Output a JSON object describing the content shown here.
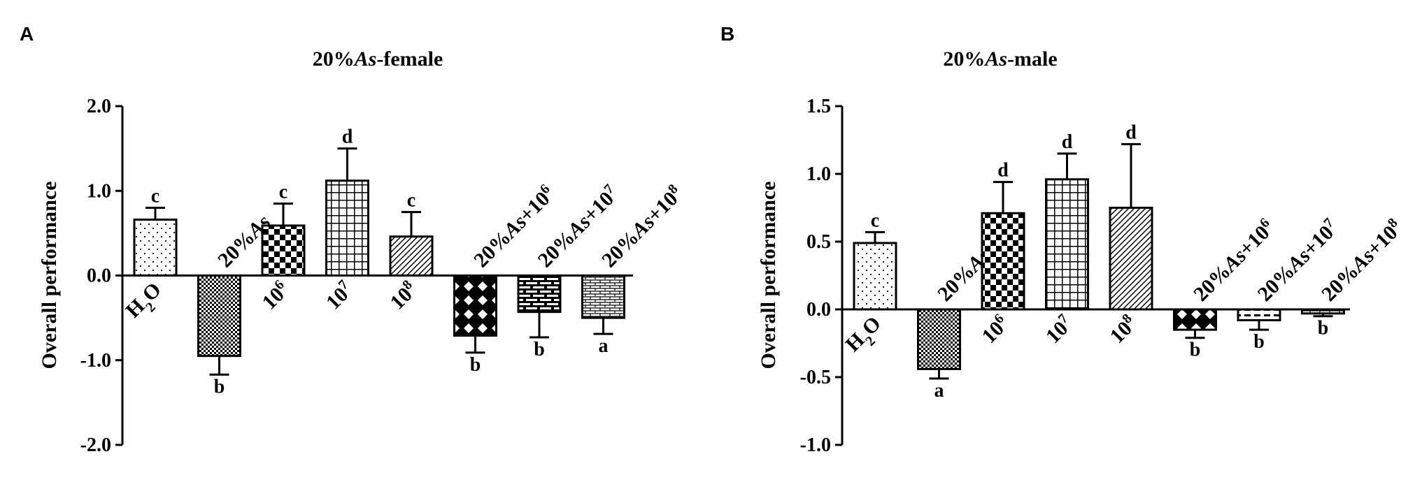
{
  "chart_data": [
    {
      "panel": "A",
      "type": "bar",
      "title": {
        "pre": "20%",
        "ital": "As",
        "post": "-female"
      },
      "ylabel": "Overall performance",
      "ylim": [
        -2.0,
        2.0
      ],
      "yticks": [
        {
          "v": 2.0,
          "label": "2.0"
        },
        {
          "v": 1.0,
          "label": "1.0"
        },
        {
          "v": 0.0,
          "label": "0.0"
        },
        {
          "v": -1.0,
          "label": "-1.0"
        },
        {
          "v": -2.0,
          "label": "-2.0"
        }
      ],
      "categories": [
        {
          "base": "H",
          "sub": "2",
          "tail": "O"
        },
        {
          "pre": "20%",
          "ital": "As"
        },
        {
          "base": "10",
          "sup": "6"
        },
        {
          "base": "10",
          "sup": "7"
        },
        {
          "base": "10",
          "sup": "8"
        },
        {
          "pre": "20%",
          "ital": "As",
          "post": "+10",
          "sup": "6"
        },
        {
          "pre": "20%",
          "ital": "As",
          "post": "+10",
          "sup": "7"
        },
        {
          "pre": "20%",
          "ital": "As",
          "post": "+10",
          "sup": "8"
        }
      ],
      "values": [
        0.66,
        -0.95,
        0.59,
        1.12,
        0.46,
        -0.71,
        -0.43,
        -0.5
      ],
      "errors": [
        0.14,
        0.22,
        0.26,
        0.38,
        0.29,
        0.2,
        0.3,
        0.19
      ],
      "letters": [
        "c",
        "b",
        "c",
        "d",
        "c",
        "b",
        "b",
        "a"
      ],
      "patterns": [
        "dots",
        "checker-fine",
        "checker",
        "grid",
        "diag",
        "diamond",
        "brick",
        "hlines"
      ]
    },
    {
      "panel": "B",
      "type": "bar",
      "title": {
        "pre": "20%",
        "ital": "As",
        "post": "-male"
      },
      "ylabel": "Overall performance",
      "ylim": [
        -1.0,
        1.5
      ],
      "yticks": [
        {
          "v": 1.5,
          "label": "1.5"
        },
        {
          "v": 1.0,
          "label": "1.0"
        },
        {
          "v": 0.5,
          "label": "0.5"
        },
        {
          "v": 0.0,
          "label": "0.0"
        },
        {
          "v": -0.5,
          "label": "-0.5"
        },
        {
          "v": -1.0,
          "label": "-1.0"
        }
      ],
      "categories": [
        {
          "base": "H",
          "sub": "2",
          "tail": "O"
        },
        {
          "pre": "20%",
          "ital": "As"
        },
        {
          "base": "10",
          "sup": "6"
        },
        {
          "base": "10",
          "sup": "7"
        },
        {
          "base": "10",
          "sup": "8"
        },
        {
          "pre": "20%",
          "ital": "As",
          "post": "+10",
          "sup": "6"
        },
        {
          "pre": "20%",
          "ital": "As",
          "post": "+10",
          "sup": "7"
        },
        {
          "pre": "20%",
          "ital": "As",
          "post": "+10",
          "sup": "8"
        }
      ],
      "values": [
        0.49,
        -0.44,
        0.71,
        0.96,
        0.75,
        -0.15,
        -0.08,
        -0.03
      ],
      "errors": [
        0.08,
        0.07,
        0.23,
        0.19,
        0.47,
        0.06,
        0.07,
        0.02
      ],
      "letters": [
        "c",
        "a",
        "d",
        "d",
        "d",
        "b",
        "b",
        "b"
      ],
      "patterns": [
        "dots",
        "checker-fine",
        "checker",
        "grid",
        "diag",
        "diamond",
        "hdash",
        "hlines"
      ]
    }
  ]
}
